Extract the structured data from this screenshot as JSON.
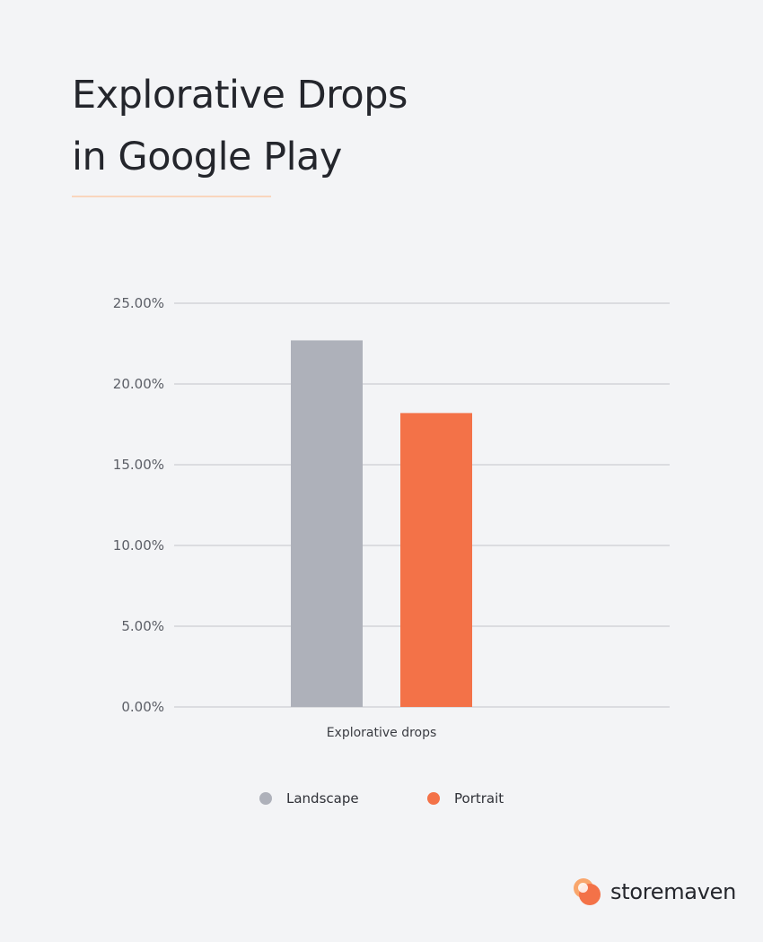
{
  "title": {
    "line1": "Explorative Drops",
    "line2": "in Google Play"
  },
  "chart_data": {
    "type": "bar",
    "categories": [
      "Explorative drops"
    ],
    "series": [
      {
        "name": "Landscape",
        "color": "#aeb1ba",
        "values": [
          22.7
        ]
      },
      {
        "name": "Portrait",
        "color": "#f37248",
        "values": [
          18.2
        ]
      }
    ],
    "ylim": [
      0,
      25
    ],
    "yticks": [
      0,
      5,
      10,
      15,
      20,
      25
    ],
    "ytick_labels": [
      "0.00%",
      "5.00%",
      "10.00%",
      "15.00%",
      "20.00%",
      "25.00%"
    ],
    "grid": true,
    "legend_position": "bottom-center"
  },
  "legend": {
    "items": [
      {
        "label": "Landscape",
        "color": "#aeb1ba"
      },
      {
        "label": "Portrait",
        "color": "#f37248"
      }
    ]
  },
  "brand": {
    "name": "storemaven",
    "icon": "storemaven-logo-icon",
    "colors": {
      "primary": "#f37248",
      "secondary": "#f9a66c"
    }
  },
  "colors": {
    "background": "#f3f4f6",
    "accent_rule": "#f9d6bd",
    "grid": "#c3c5ca"
  }
}
